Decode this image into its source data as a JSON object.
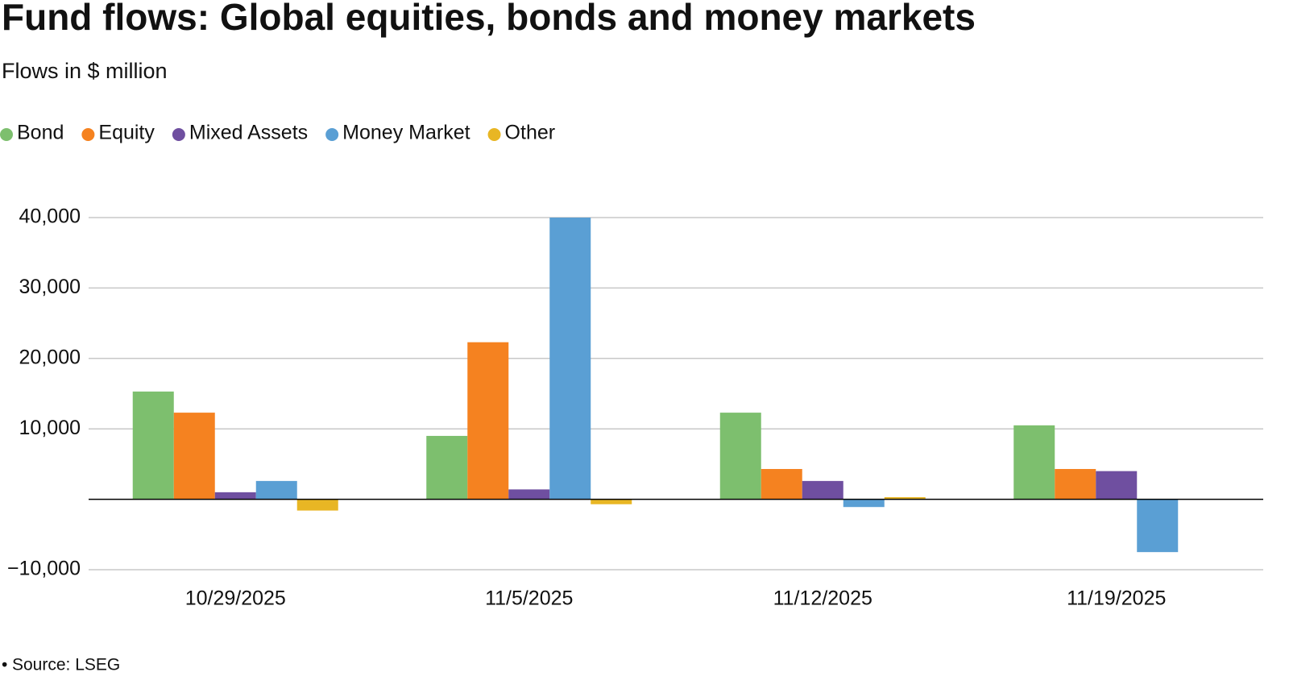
{
  "chart_data": {
    "type": "bar",
    "title": "Fund flows: Global equities, bonds and money markets",
    "subtitle": "Flows in $ million",
    "source": "Source: LSEG",
    "categories": [
      "10/29/2025",
      "11/5/2025",
      "11/12/2025",
      "11/19/2025"
    ],
    "series": [
      {
        "name": "Bond",
        "color": "#7dbf6e",
        "values": [
          15300,
          9000,
          12300,
          10500
        ]
      },
      {
        "name": "Equity",
        "color": "#f58220",
        "values": [
          12300,
          22300,
          4300,
          4300
        ]
      },
      {
        "name": "Mixed Assets",
        "color": "#6f4fa0",
        "values": [
          1000,
          1400,
          2600,
          4000
        ]
      },
      {
        "name": "Money Market",
        "color": "#5a9fd4",
        "values": [
          2600,
          40000,
          -1100,
          -7500
        ]
      },
      {
        "name": "Other",
        "color": "#e8b624",
        "values": [
          -1600,
          -700,
          300,
          0
        ]
      }
    ],
    "ylim": [
      -10000,
      40000
    ],
    "yticks": [
      {
        "value": -10000,
        "label": "−10,000"
      },
      {
        "value": 10000,
        "label": "10,000"
      },
      {
        "value": 20000,
        "label": "20,000"
      },
      {
        "value": 30000,
        "label": "30,000"
      },
      {
        "value": 40000,
        "label": "40,000"
      }
    ],
    "grid": true
  }
}
